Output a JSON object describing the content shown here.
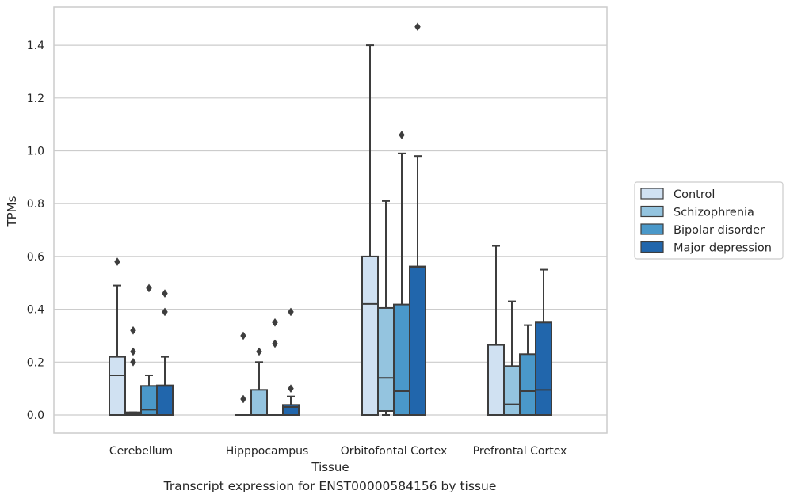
{
  "caption": "Transcript expression for ENST00000584156 by tissue",
  "chart_data": {
    "type": "boxplot",
    "title": "",
    "xlabel": "Tissue",
    "ylabel": "TPMs",
    "ylim": [
      -0.07,
      1.55
    ],
    "yticks": [
      0.0,
      0.2,
      0.4,
      0.6,
      0.8,
      1.0,
      1.2,
      1.4
    ],
    "ytick_labels": [
      "0.0",
      "0.2",
      "0.4",
      "0.6",
      "0.8",
      "1.0",
      "1.2",
      "1.4"
    ],
    "grid": true,
    "legend_position": "right",
    "categories": [
      "Cerebellum",
      "Hipppocampus",
      "Orbitofontal Cortex",
      "Prefrontal Cortex"
    ],
    "series": [
      {
        "name": "Control",
        "color": "#d0e1f2",
        "boxes": [
          {
            "q1": 0.0,
            "median": 0.15,
            "q3": 0.22,
            "whisker_low": 0.0,
            "whisker_high": 0.49,
            "outliers": [
              0.58
            ]
          },
          {
            "q1": 0.0,
            "median": 0.0,
            "q3": 0.0,
            "whisker_low": 0.0,
            "whisker_high": 0.0,
            "outliers": [
              0.06,
              0.3
            ]
          },
          {
            "q1": 0.0,
            "median": 0.42,
            "q3": 0.6,
            "whisker_low": 0.0,
            "whisker_high": 1.4,
            "outliers": []
          },
          {
            "q1": 0.0,
            "median": 0.0,
            "q3": 0.265,
            "whisker_low": 0.0,
            "whisker_high": 0.64,
            "outliers": []
          }
        ]
      },
      {
        "name": "Schizophrenia",
        "color": "#94c4df",
        "boxes": [
          {
            "q1": 0.0,
            "median": 0.005,
            "q3": 0.01,
            "whisker_low": 0.0,
            "whisker_high": 0.01,
            "outliers": [
              0.2,
              0.24,
              0.32
            ]
          },
          {
            "q1": 0.0,
            "median": 0.0,
            "q3": 0.095,
            "whisker_low": 0.0,
            "whisker_high": 0.2,
            "outliers": [
              0.24
            ]
          },
          {
            "q1": 0.015,
            "median": 0.14,
            "q3": 0.405,
            "whisker_low": 0.0,
            "whisker_high": 0.81,
            "outliers": []
          },
          {
            "q1": 0.0,
            "median": 0.04,
            "q3": 0.185,
            "whisker_low": 0.0,
            "whisker_high": 0.43,
            "outliers": []
          }
        ]
      },
      {
        "name": "Bipolar disorder",
        "color": "#4a98c9",
        "boxes": [
          {
            "q1": 0.0,
            "median": 0.02,
            "q3": 0.11,
            "whisker_low": 0.0,
            "whisker_high": 0.15,
            "outliers": [
              0.48
            ]
          },
          {
            "q1": 0.0,
            "median": 0.0,
            "q3": 0.0,
            "whisker_low": 0.0,
            "whisker_high": 0.0,
            "outliers": [
              0.27,
              0.35
            ]
          },
          {
            "q1": 0.0,
            "median": 0.09,
            "q3": 0.418,
            "whisker_low": 0.0,
            "whisker_high": 0.99,
            "outliers": [
              1.06
            ]
          },
          {
            "q1": 0.0,
            "median": 0.09,
            "q3": 0.23,
            "whisker_low": 0.0,
            "whisker_high": 0.34,
            "outliers": []
          }
        ]
      },
      {
        "name": "Major depression",
        "color": "#2166ac",
        "boxes": [
          {
            "q1": 0.0,
            "median": 0.11,
            "q3": 0.112,
            "whisker_low": 0.0,
            "whisker_high": 0.22,
            "outliers": [
              0.39,
              0.46
            ]
          },
          {
            "q1": 0.0,
            "median": 0.03,
            "q3": 0.038,
            "whisker_low": 0.0,
            "whisker_high": 0.07,
            "outliers": [
              0.1,
              0.39
            ]
          },
          {
            "q1": 0.0,
            "median": 0.56,
            "q3": 0.562,
            "whisker_low": 0.0,
            "whisker_high": 0.98,
            "outliers": [
              1.47
            ]
          },
          {
            "q1": 0.0,
            "median": 0.095,
            "q3": 0.35,
            "whisker_low": 0.0,
            "whisker_high": 0.55,
            "outliers": []
          }
        ]
      }
    ]
  }
}
